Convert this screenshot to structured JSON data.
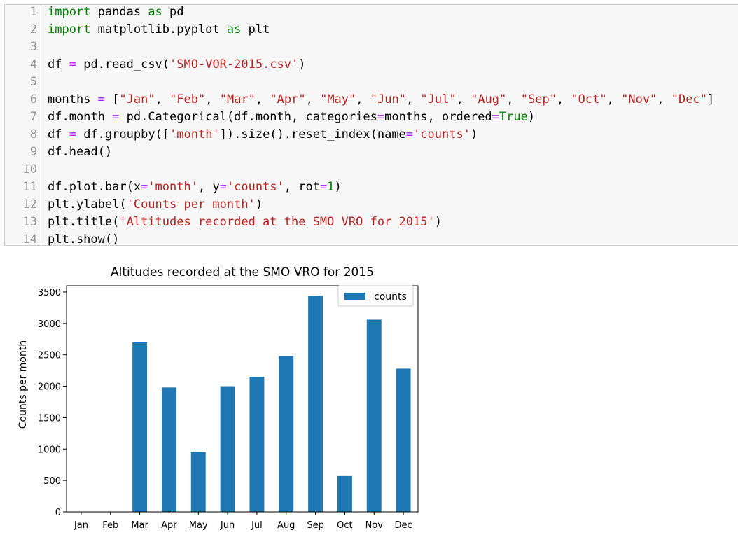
{
  "code_cell": {
    "lines": [
      {
        "n": "1",
        "parts": [
          {
            "t": "import",
            "c": "kw"
          },
          {
            "t": " pandas "
          },
          {
            "t": "as",
            "c": "kw"
          },
          {
            "t": " pd"
          }
        ]
      },
      {
        "n": "2",
        "parts": [
          {
            "t": "import",
            "c": "kw"
          },
          {
            "t": " matplotlib.pyplot "
          },
          {
            "t": "as",
            "c": "kw"
          },
          {
            "t": " plt"
          }
        ]
      },
      {
        "n": "3",
        "parts": []
      },
      {
        "n": "4",
        "parts": [
          {
            "t": "df "
          },
          {
            "t": "=",
            "c": "op"
          },
          {
            "t": " pd.read_csv("
          },
          {
            "t": "'SMO-VOR-2015.csv'",
            "c": "str"
          },
          {
            "t": ")"
          }
        ]
      },
      {
        "n": "5",
        "parts": []
      },
      {
        "n": "6",
        "parts": [
          {
            "t": "months "
          },
          {
            "t": "=",
            "c": "op"
          },
          {
            "t": " ["
          },
          {
            "t": "\"Jan\"",
            "c": "str"
          },
          {
            "t": ", "
          },
          {
            "t": "\"Feb\"",
            "c": "str"
          },
          {
            "t": ", "
          },
          {
            "t": "\"Mar\"",
            "c": "str"
          },
          {
            "t": ", "
          },
          {
            "t": "\"Apr\"",
            "c": "str"
          },
          {
            "t": ", "
          },
          {
            "t": "\"May\"",
            "c": "str"
          },
          {
            "t": ", "
          },
          {
            "t": "\"Jun\"",
            "c": "str"
          },
          {
            "t": ", "
          },
          {
            "t": "\"Jul\"",
            "c": "str"
          },
          {
            "t": ", "
          },
          {
            "t": "\"Aug\"",
            "c": "str"
          },
          {
            "t": ", "
          },
          {
            "t": "\"Sep\"",
            "c": "str"
          },
          {
            "t": ", "
          },
          {
            "t": "\"Oct\"",
            "c": "str"
          },
          {
            "t": ", "
          },
          {
            "t": "\"Nov\"",
            "c": "str"
          },
          {
            "t": ", "
          },
          {
            "t": "\"Dec\"",
            "c": "str"
          },
          {
            "t": "]"
          }
        ]
      },
      {
        "n": "7",
        "parts": [
          {
            "t": "df.month "
          },
          {
            "t": "=",
            "c": "op"
          },
          {
            "t": " pd.Categorical(df.month, categories"
          },
          {
            "t": "=",
            "c": "op"
          },
          {
            "t": "months, ordered"
          },
          {
            "t": "=",
            "c": "op"
          },
          {
            "t": "True",
            "c": "kw"
          },
          {
            "t": ")"
          }
        ]
      },
      {
        "n": "8",
        "parts": [
          {
            "t": "df "
          },
          {
            "t": "=",
            "c": "op"
          },
          {
            "t": " df.groupby(["
          },
          {
            "t": "'month'",
            "c": "str"
          },
          {
            "t": "]).size().reset_index(name"
          },
          {
            "t": "=",
            "c": "op"
          },
          {
            "t": "'counts'",
            "c": "str"
          },
          {
            "t": ")"
          }
        ]
      },
      {
        "n": "9",
        "parts": [
          {
            "t": "df.head()"
          }
        ]
      },
      {
        "n": "10",
        "parts": []
      },
      {
        "n": "11",
        "parts": [
          {
            "t": "df.plot.bar(x"
          },
          {
            "t": "=",
            "c": "op"
          },
          {
            "t": "'month'",
            "c": "str"
          },
          {
            "t": ", y"
          },
          {
            "t": "=",
            "c": "op"
          },
          {
            "t": "'counts'",
            "c": "str"
          },
          {
            "t": ", rot"
          },
          {
            "t": "=",
            "c": "op"
          },
          {
            "t": "1",
            "c": "kw"
          },
          {
            "t": ")"
          }
        ]
      },
      {
        "n": "12",
        "parts": [
          {
            "t": "plt.ylabel("
          },
          {
            "t": "'Counts per month'",
            "c": "str"
          },
          {
            "t": ")"
          }
        ]
      },
      {
        "n": "13",
        "parts": [
          {
            "t": "plt.title("
          },
          {
            "t": "'Altitudes recorded at the SMO VRO for 2015'",
            "c": "str"
          },
          {
            "t": ")"
          }
        ]
      },
      {
        "n": "14",
        "parts": [
          {
            "t": "plt.show()"
          }
        ]
      }
    ]
  },
  "chart_data": {
    "type": "bar",
    "title": "Altitudes recorded at the SMO VRO for 2015",
    "xlabel": "",
    "ylabel": "Counts per month",
    "categories": [
      "Jan",
      "Feb",
      "Mar",
      "Apr",
      "May",
      "Jun",
      "Jul",
      "Aug",
      "Sep",
      "Oct",
      "Nov",
      "Dec"
    ],
    "series": [
      {
        "name": "counts",
        "color": "#1f77b4",
        "values": [
          0,
          0,
          2700,
          1980,
          950,
          2000,
          2150,
          2480,
          3440,
          570,
          3060,
          2280
        ]
      }
    ],
    "ylim": [
      0,
      3600
    ],
    "yticks": [
      0,
      500,
      1000,
      1500,
      2000,
      2500,
      3000,
      3500
    ],
    "grid": false,
    "legend": "top-right"
  }
}
